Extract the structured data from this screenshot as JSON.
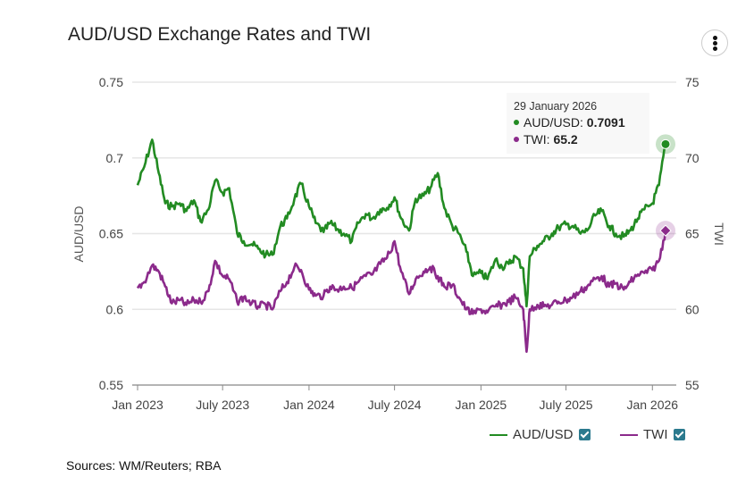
{
  "header": {
    "title": "AUD/USD Exchange Rates and TWI",
    "menu_icon": "vertical-ellipsis-icon"
  },
  "tooltip": {
    "date": "29 January 2026",
    "rows": [
      {
        "label": "AUD/USD: ",
        "value": "0.7091",
        "color": "#228b22"
      },
      {
        "label": "TWI: ",
        "value": "65.2",
        "color": "#8b2a8b"
      }
    ]
  },
  "legend": {
    "items": [
      {
        "label": "AUD/USD",
        "color": "#228b22",
        "checked": true
      },
      {
        "label": "TWI",
        "color": "#8b2a8b",
        "checked": true
      }
    ]
  },
  "footer": {
    "source": "Sources: WM/Reuters; RBA"
  },
  "chart_data": {
    "type": "line",
    "title": "AUD/USD Exchange Rates and TWI",
    "xlabel": "",
    "ylabel": "AUD/USD",
    "y2label": "TWI",
    "ylim": [
      0.55,
      0.75
    ],
    "y2lim": [
      55,
      75
    ],
    "yticks": [
      "0.75",
      "0.7",
      "0.65",
      "0.6",
      "0.55"
    ],
    "y2ticks": [
      "75",
      "70",
      "65",
      "60",
      "55"
    ],
    "xticks": [
      "Jan 2023",
      "July 2023",
      "Jan 2024",
      "July 2024",
      "Jan 2025",
      "July 2025",
      "Jan 2026"
    ],
    "xrange": [
      "2023-01-01",
      "2026-01-29"
    ],
    "grid": true,
    "legend_position": "bottom-right",
    "series": [
      {
        "name": "AUD/USD",
        "axis": "left",
        "color": "#228b22",
        "x": [
          "2023-01",
          "2023-01-15",
          "2023-02",
          "2023-02-15",
          "2023-03",
          "2023-03-15",
          "2023-04",
          "2023-04-15",
          "2023-05",
          "2023-05-15",
          "2023-06",
          "2023-06-15",
          "2023-07",
          "2023-07-15",
          "2023-08",
          "2023-08-15",
          "2023-09",
          "2023-09-15",
          "2023-10",
          "2023-10-15",
          "2023-11",
          "2023-11-15",
          "2023-12",
          "2023-12-15",
          "2024-01",
          "2024-01-15",
          "2024-02",
          "2024-02-15",
          "2024-03",
          "2024-03-15",
          "2024-04",
          "2024-04-15",
          "2024-05",
          "2024-05-15",
          "2024-06",
          "2024-06-15",
          "2024-07",
          "2024-07-15",
          "2024-08",
          "2024-08-15",
          "2024-09",
          "2024-09-15",
          "2024-10",
          "2024-10-15",
          "2024-11",
          "2024-11-15",
          "2024-12",
          "2024-12-15",
          "2025-01",
          "2025-01-15",
          "2025-02",
          "2025-02-15",
          "2025-03",
          "2025-03-15",
          "2025-04",
          "2025-04-08",
          "2025-04-15",
          "2025-05",
          "2025-05-15",
          "2025-06",
          "2025-06-15",
          "2025-07",
          "2025-07-15",
          "2025-08",
          "2025-08-15",
          "2025-09",
          "2025-09-15",
          "2025-10",
          "2025-10-15",
          "2025-11",
          "2025-11-15",
          "2025-12",
          "2025-12-15",
          "2026-01",
          "2026-01-15",
          "2026-01-29"
        ],
        "values": [
          0.682,
          0.694,
          0.712,
          0.69,
          0.67,
          0.668,
          0.67,
          0.665,
          0.672,
          0.658,
          0.666,
          0.685,
          0.677,
          0.68,
          0.65,
          0.645,
          0.643,
          0.64,
          0.636,
          0.636,
          0.655,
          0.66,
          0.673,
          0.683,
          0.668,
          0.657,
          0.651,
          0.657,
          0.653,
          0.65,
          0.645,
          0.657,
          0.663,
          0.66,
          0.666,
          0.667,
          0.674,
          0.66,
          0.652,
          0.673,
          0.675,
          0.68,
          0.69,
          0.667,
          0.655,
          0.65,
          0.638,
          0.622,
          0.624,
          0.62,
          0.633,
          0.628,
          0.63,
          0.635,
          0.627,
          0.602,
          0.635,
          0.642,
          0.645,
          0.65,
          0.654,
          0.656,
          0.655,
          0.65,
          0.652,
          0.662,
          0.665,
          0.655,
          0.65,
          0.648,
          0.652,
          0.66,
          0.666,
          0.67,
          0.682,
          0.7091
        ]
      },
      {
        "name": "TWI",
        "axis": "right",
        "color": "#8b2a8b",
        "x": [
          "2023-01",
          "2023-01-15",
          "2023-02",
          "2023-02-15",
          "2023-03",
          "2023-03-15",
          "2023-04",
          "2023-04-15",
          "2023-05",
          "2023-05-15",
          "2023-06",
          "2023-06-15",
          "2023-07",
          "2023-07-15",
          "2023-08",
          "2023-08-15",
          "2023-09",
          "2023-09-15",
          "2023-10",
          "2023-10-15",
          "2023-11",
          "2023-11-15",
          "2023-12",
          "2023-12-15",
          "2024-01",
          "2024-01-15",
          "2024-02",
          "2024-02-15",
          "2024-03",
          "2024-03-15",
          "2024-04",
          "2024-04-15",
          "2024-05",
          "2024-05-15",
          "2024-06",
          "2024-06-15",
          "2024-07",
          "2024-07-15",
          "2024-08",
          "2024-08-15",
          "2024-09",
          "2024-09-15",
          "2024-10",
          "2024-10-15",
          "2024-11",
          "2024-11-15",
          "2024-12",
          "2024-12-15",
          "2025-01",
          "2025-01-15",
          "2025-02",
          "2025-02-15",
          "2025-03",
          "2025-03-15",
          "2025-04",
          "2025-04-08",
          "2025-04-15",
          "2025-05",
          "2025-05-15",
          "2025-06",
          "2025-06-15",
          "2025-07",
          "2025-07-15",
          "2025-08",
          "2025-08-15",
          "2025-09",
          "2025-09-15",
          "2025-10",
          "2025-10-15",
          "2025-11",
          "2025-11-15",
          "2025-12",
          "2025-12-15",
          "2026-01",
          "2026-01-15",
          "2026-01-29"
        ],
        "values": [
          61.4,
          61.8,
          62.9,
          62.5,
          61.5,
          60.4,
          60.6,
          60.3,
          60.6,
          60.5,
          61.2,
          63.2,
          62.2,
          62.0,
          60.5,
          60.8,
          60.4,
          60.2,
          60.3,
          60.0,
          61.2,
          61.8,
          62.8,
          62.6,
          61.3,
          60.9,
          60.9,
          61.5,
          61.3,
          61.5,
          61.4,
          61.8,
          62.2,
          62.3,
          63.0,
          63.4,
          64.5,
          62.5,
          61.0,
          62.0,
          62.5,
          62.8,
          62.2,
          61.5,
          61.6,
          60.8,
          60.0,
          59.7,
          60.0,
          59.8,
          60.2,
          60.3,
          60.5,
          60.8,
          60.0,
          57.2,
          60.0,
          60.3,
          60.2,
          60.3,
          60.5,
          60.6,
          60.8,
          61.2,
          61.5,
          62.0,
          62.2,
          61.5,
          61.7,
          61.3,
          61.8,
          62.3,
          62.4,
          62.6,
          63.2,
          65.2
        ]
      }
    ],
    "annotations": [
      {
        "type": "highlight-marker",
        "series": "AUD/USD",
        "x": "2026-01-29",
        "value": 0.7091
      },
      {
        "type": "highlight-marker",
        "series": "TWI",
        "x": "2026-01-29",
        "value": 65.2
      }
    ]
  }
}
